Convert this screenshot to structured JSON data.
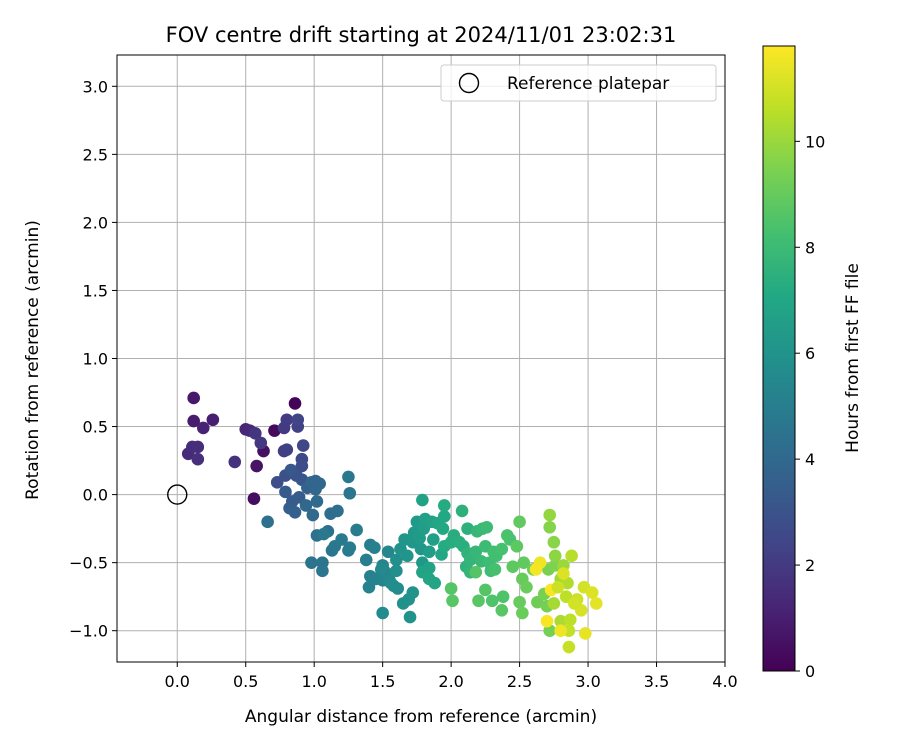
{
  "chart_data": {
    "type": "scatter",
    "title": "FOV centre drift starting at 2024/11/01 23:02:31",
    "xlabel": "Angular distance from reference (arcmin)",
    "ylabel": "Rotation from reference (arcmin)",
    "xlim": [
      -0.44,
      4.0
    ],
    "ylim": [
      -1.23,
      3.23
    ],
    "xticks": [
      0.0,
      0.5,
      1.0,
      1.5,
      2.0,
      2.5,
      3.0,
      3.5,
      4.0
    ],
    "xtick_labels": [
      "0.0",
      "0.5",
      "1.0",
      "1.5",
      "2.0",
      "2.5",
      "3.0",
      "3.5",
      "4.0"
    ],
    "yticks": [
      -1.0,
      -0.5,
      0.0,
      0.5,
      1.0,
      1.5,
      2.0,
      2.5,
      3.0
    ],
    "ytick_labels": [
      "−1.0",
      "−0.5",
      "0.0",
      "0.5",
      "1.0",
      "1.5",
      "2.0",
      "2.5",
      "3.0"
    ],
    "grid": true,
    "legend": {
      "placement": "top-right",
      "entries": [
        "Reference platepar"
      ]
    },
    "reference_point": {
      "x": 0.0,
      "y": 0.0,
      "label": "Reference platepar"
    },
    "colorbar": {
      "label": "Hours from first FF file",
      "range": [
        0,
        11.8
      ],
      "ticks": [
        0,
        2,
        4,
        6,
        8,
        10
      ],
      "tick_labels": [
        "0",
        "2",
        "4",
        "6",
        "8",
        "10"
      ],
      "colormap": "viridis"
    },
    "points": [
      [
        0.86,
        0.67,
        0.1
      ],
      [
        0.71,
        0.47,
        0.3
      ],
      [
        0.56,
        -0.03,
        0.4
      ],
      [
        0.63,
        0.32,
        0.5
      ],
      [
        0.58,
        0.21,
        0.6
      ],
      [
        0.12,
        0.71,
        0.8
      ],
      [
        0.12,
        0.54,
        0.9
      ],
      [
        0.26,
        0.55,
        1.0
      ],
      [
        0.19,
        0.49,
        1.1
      ],
      [
        0.5,
        0.48,
        1.2
      ],
      [
        0.53,
        0.47,
        1.3
      ],
      [
        0.08,
        0.3,
        1.4
      ],
      [
        0.11,
        0.35,
        1.5
      ],
      [
        0.15,
        0.35,
        1.55
      ],
      [
        0.15,
        0.26,
        1.6
      ],
      [
        0.42,
        0.24,
        1.7
      ],
      [
        0.57,
        0.45,
        1.8
      ],
      [
        0.61,
        0.38,
        1.9
      ],
      [
        0.78,
        0.49,
        2.0
      ],
      [
        0.8,
        0.55,
        2.05
      ],
      [
        0.78,
        0.32,
        2.1
      ],
      [
        0.8,
        0.33,
        2.2
      ],
      [
        0.88,
        0.5,
        2.3
      ],
      [
        0.88,
        0.55,
        2.4
      ],
      [
        0.92,
        0.36,
        2.5
      ],
      [
        0.91,
        0.26,
        2.6
      ],
      [
        0.91,
        0.21,
        2.7
      ],
      [
        0.73,
        0.09,
        2.8
      ],
      [
        0.79,
        0.14,
        2.9
      ],
      [
        0.87,
        0.14,
        3.0
      ],
      [
        0.91,
        0.11,
        3.1
      ],
      [
        0.83,
        0.18,
        3.2
      ],
      [
        0.79,
        0.02,
        3.3
      ],
      [
        0.84,
        -0.05,
        3.35
      ],
      [
        0.89,
        -0.02,
        3.4
      ],
      [
        0.82,
        -0.1,
        3.5
      ],
      [
        0.86,
        -0.13,
        3.6
      ],
      [
        0.95,
        0.05,
        3.7
      ],
      [
        0.98,
        0.09,
        3.8
      ],
      [
        1.01,
        0.1,
        3.85
      ],
      [
        1.04,
        0.08,
        3.9
      ],
      [
        1.01,
        0.04,
        3.9
      ],
      [
        0.94,
        -0.08,
        4.0
      ],
      [
        0.99,
        -0.15,
        4.0
      ],
      [
        1.02,
        -0.05,
        4.1
      ],
      [
        1.12,
        -0.14,
        4.2
      ],
      [
        1.17,
        -0.12,
        4.3
      ],
      [
        1.1,
        -0.27,
        4.3
      ],
      [
        1.02,
        -0.3,
        4.4
      ],
      [
        0.66,
        -0.2,
        4.4
      ],
      [
        0.98,
        -0.5,
        4.5
      ],
      [
        1.06,
        -0.5,
        4.5
      ],
      [
        1.06,
        -0.56,
        4.6
      ],
      [
        1.13,
        -0.41,
        4.6
      ],
      [
        1.15,
        -0.38,
        4.7
      ],
      [
        1.07,
        -0.29,
        4.7
      ],
      [
        1.2,
        -0.33,
        4.8
      ],
      [
        1.25,
        -0.41,
        4.8
      ],
      [
        1.26,
        -0.39,
        4.9
      ],
      [
        1.31,
        -0.26,
        4.9
      ],
      [
        1.25,
        0.13,
        4.7
      ],
      [
        1.26,
        0.01,
        4.6
      ],
      [
        1.38,
        -0.48,
        5.0
      ],
      [
        1.41,
        -0.37,
        5.0
      ],
      [
        1.44,
        -0.39,
        5.1
      ],
      [
        1.41,
        -0.6,
        5.1
      ],
      [
        1.4,
        -0.68,
        5.2
      ],
      [
        1.45,
        -0.62,
        5.2
      ],
      [
        1.5,
        -0.52,
        5.3
      ],
      [
        1.5,
        -0.63,
        5.3
      ],
      [
        1.52,
        -0.57,
        5.4
      ],
      [
        1.54,
        -0.42,
        5.4
      ],
      [
        1.49,
        -0.55,
        5.5
      ],
      [
        1.55,
        -0.63,
        5.5
      ],
      [
        1.5,
        -0.87,
        5.6
      ],
      [
        1.56,
        -0.65,
        5.6
      ],
      [
        1.58,
        -0.67,
        5.7
      ],
      [
        1.61,
        -0.69,
        5.7
      ],
      [
        1.6,
        -0.56,
        5.8
      ],
      [
        1.6,
        -0.48,
        5.8
      ],
      [
        1.65,
        -0.8,
        5.9
      ],
      [
        1.69,
        -0.77,
        5.9
      ],
      [
        1.7,
        -0.9,
        6.0
      ],
      [
        1.72,
        -0.72,
        6.0
      ],
      [
        1.63,
        -0.4,
        6.0
      ],
      [
        1.66,
        -0.33,
        6.1
      ],
      [
        1.68,
        -0.45,
        6.1
      ],
      [
        1.72,
        -0.35,
        6.2
      ],
      [
        1.78,
        -0.4,
        6.2
      ],
      [
        1.79,
        -0.5,
        6.3
      ],
      [
        1.73,
        -0.28,
        6.3
      ],
      [
        1.75,
        -0.2,
        6.4
      ],
      [
        1.77,
        -0.32,
        6.4
      ],
      [
        1.8,
        -0.25,
        6.5
      ],
      [
        1.84,
        -0.42,
        6.5
      ],
      [
        1.87,
        -0.33,
        6.6
      ],
      [
        1.81,
        -0.18,
        6.6
      ],
      [
        1.79,
        -0.04,
        6.7
      ],
      [
        1.86,
        -0.2,
        6.7
      ],
      [
        1.79,
        -0.57,
        6.8
      ],
      [
        1.84,
        -0.54,
        6.8
      ],
      [
        1.84,
        -0.62,
        6.9
      ],
      [
        1.88,
        -0.65,
        6.9
      ],
      [
        1.93,
        -0.44,
        7.0
      ],
      [
        1.9,
        -0.21,
        7.0
      ],
      [
        1.94,
        -0.25,
        7.1
      ],
      [
        1.95,
        -0.16,
        7.1
      ],
      [
        1.95,
        -0.08,
        7.2
      ],
      [
        1.95,
        -0.38,
        7.2
      ],
      [
        2.0,
        -0.35,
        7.3
      ],
      [
        2.02,
        -0.3,
        7.3
      ],
      [
        2.06,
        -0.35,
        7.4
      ],
      [
        2.09,
        -0.38,
        7.4
      ],
      [
        2.08,
        -0.12,
        7.5
      ],
      [
        2.12,
        -0.25,
        7.5
      ],
      [
        2.12,
        -0.43,
        7.6
      ],
      [
        2.11,
        -0.53,
        7.6
      ],
      [
        2.14,
        -0.48,
        7.7
      ],
      [
        2.14,
        -0.57,
        7.7
      ],
      [
        2.18,
        -0.42,
        7.8
      ],
      [
        2.19,
        -0.27,
        7.8
      ],
      [
        2.22,
        -0.49,
        7.9
      ],
      [
        2.23,
        -0.25,
        7.9
      ],
      [
        2.26,
        -0.24,
        8.0
      ],
      [
        2.25,
        -0.38,
        8.0
      ],
      [
        2.28,
        -0.5,
        8.1
      ],
      [
        2.29,
        -0.56,
        8.1
      ],
      [
        2.31,
        -0.42,
        8.2
      ],
      [
        2.33,
        -0.45,
        8.2
      ],
      [
        2.32,
        -0.55,
        8.3
      ],
      [
        2.37,
        -0.4,
        8.3
      ],
      [
        2.41,
        -0.3,
        8.4
      ],
      [
        2.43,
        -0.33,
        8.4
      ],
      [
        2.38,
        -0.75,
        8.5
      ],
      [
        2.3,
        -0.78,
        8.5
      ],
      [
        2.25,
        -0.7,
        8.6
      ],
      [
        2.18,
        -0.57,
        8.6
      ],
      [
        2.0,
        -0.69,
        8.6
      ],
      [
        2.01,
        -0.78,
        8.7
      ],
      [
        2.2,
        -0.78,
        8.7
      ],
      [
        2.37,
        -0.85,
        8.7
      ],
      [
        2.45,
        -0.53,
        8.8
      ],
      [
        2.48,
        -0.38,
        8.8
      ],
      [
        2.5,
        -0.2,
        8.9
      ],
      [
        2.53,
        -0.5,
        8.9
      ],
      [
        2.52,
        -0.62,
        9.0
      ],
      [
        2.5,
        -0.79,
        9.0
      ],
      [
        2.52,
        -0.87,
        9.1
      ],
      [
        2.55,
        -0.68,
        9.1
      ],
      [
        2.6,
        -0.55,
        9.2
      ],
      [
        2.63,
        -0.79,
        9.2
      ],
      [
        2.7,
        -0.82,
        9.3
      ],
      [
        2.72,
        -1.0,
        9.3
      ],
      [
        2.68,
        -0.73,
        9.4
      ],
      [
        2.71,
        -0.55,
        9.4
      ],
      [
        2.76,
        -0.52,
        9.5
      ],
      [
        2.72,
        -0.24,
        9.6
      ],
      [
        2.75,
        -0.35,
        9.7
      ],
      [
        2.76,
        -0.45,
        9.8
      ],
      [
        2.72,
        -0.15,
        9.9
      ],
      [
        2.82,
        -0.52,
        10.0
      ],
      [
        2.8,
        -0.62,
        10.1
      ],
      [
        2.75,
        -0.8,
        10.2
      ],
      [
        2.8,
        -0.93,
        10.3
      ],
      [
        2.85,
        -0.65,
        10.4
      ],
      [
        2.88,
        -0.45,
        10.5
      ],
      [
        2.84,
        -0.75,
        10.6
      ],
      [
        2.87,
        -0.92,
        10.6
      ],
      [
        2.86,
        -1.0,
        10.7
      ],
      [
        2.86,
        -1.12,
        10.8
      ],
      [
        2.92,
        -0.77,
        10.9
      ],
      [
        2.97,
        -0.68,
        11.0
      ],
      [
        2.95,
        -0.85,
        11.1
      ],
      [
        3.03,
        -0.72,
        11.2
      ],
      [
        3.06,
        -0.8,
        11.3
      ],
      [
        2.98,
        -1.02,
        11.4
      ],
      [
        2.65,
        -0.5,
        11.5
      ],
      [
        2.62,
        -0.55,
        11.6
      ],
      [
        2.73,
        -0.7,
        11.7
      ],
      [
        2.7,
        -0.93,
        11.7
      ],
      [
        2.82,
        -0.58,
        11.2
      ],
      [
        2.9,
        -0.8,
        11.0
      ],
      [
        2.78,
        -0.68,
        10.9
      ],
      [
        2.8,
        -1.0,
        11.5
      ]
    ]
  }
}
